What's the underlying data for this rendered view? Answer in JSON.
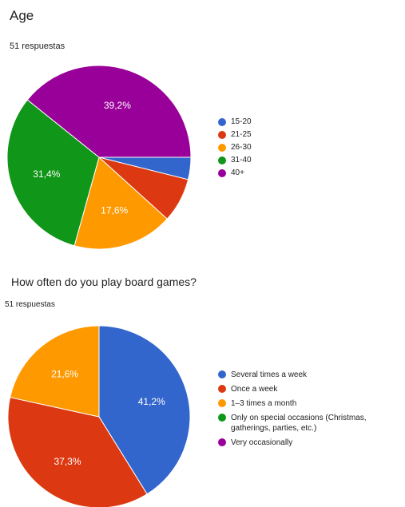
{
  "chart_data": [
    {
      "type": "pie",
      "title": "Age",
      "subtitle": "51 respuestas",
      "categories": [
        "15-20",
        "21-25",
        "26-30",
        "31-40",
        "40+"
      ],
      "values": [
        3.9,
        7.8,
        17.6,
        31.4,
        39.2
      ],
      "value_labels": [
        "",
        "",
        "17,6%",
        "31,4%",
        "39,2%"
      ],
      "colors": [
        "#3366cc",
        "#dc3912",
        "#ff9900",
        "#109618",
        "#990099"
      ],
      "legend_position": "right"
    },
    {
      "type": "pie",
      "title": "How often do you play board games?",
      "subtitle": "51 respuestas",
      "categories": [
        "Several times a week",
        "Once a week",
        "1–3 times a month",
        "Only on special occasions (Christmas, gatherings, parties, etc.)",
        "Very occasionally"
      ],
      "values": [
        41.2,
        37.3,
        21.6,
        0,
        0
      ],
      "value_labels": [
        "41,2%",
        "37,3%",
        "21,6%",
        "",
        ""
      ],
      "colors": [
        "#3366cc",
        "#dc3912",
        "#ff9900",
        "#109618",
        "#990099"
      ],
      "legend_position": "right"
    }
  ]
}
